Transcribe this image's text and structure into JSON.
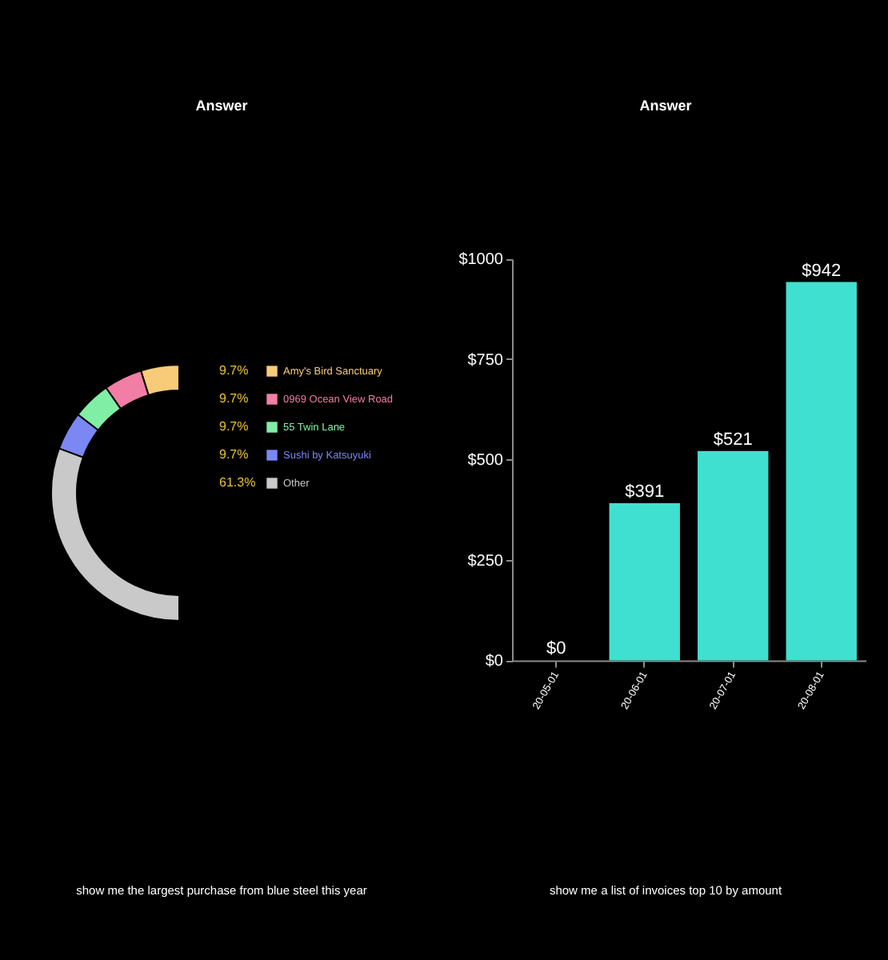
{
  "chart_data": [
    {
      "type": "donut",
      "title": "Answer",
      "categories": [
        "Amy's Bird Sanctuary",
        "0969 Ocean View Road",
        "55 Twin Lane",
        "Sushi by Katsuyuki",
        "Other"
      ],
      "values": [
        9.7,
        9.7,
        9.7,
        9.7,
        61.3
      ],
      "colors": [
        "#f8cb78",
        "#f27ea6",
        "#80eea5",
        "#7b87f3",
        "#c9c9c9"
      ],
      "value_labels": [
        "9.7%",
        "9.7%",
        "9.7%",
        "9.7%",
        "61.3%"
      ],
      "legend": "right",
      "annotations": [
        "show me the largest purchase from blue steel this year"
      ]
    },
    {
      "type": "bar",
      "title": "Answer",
      "categories": [
        "20-05-01",
        "20-06-01",
        "20-07-01",
        "20-08-01"
      ],
      "values": [
        0,
        391,
        521,
        942
      ],
      "color": "#40e0d0",
      "ylim": [
        0,
        1000
      ],
      "yticks": [
        {
          "value": 0,
          "label": "$0"
        },
        {
          "value": 250,
          "label": "$250"
        },
        {
          "value": 500,
          "label": "$500"
        },
        {
          "value": 750,
          "label": "$750"
        },
        {
          "value": 1000,
          "label": "$1000"
        }
      ],
      "value_labels": [
        "$0",
        "$391",
        "$521",
        "$942"
      ],
      "grid": false,
      "annotations": [
        "show me a list of invoices top 10 by amount"
      ]
    }
  ]
}
